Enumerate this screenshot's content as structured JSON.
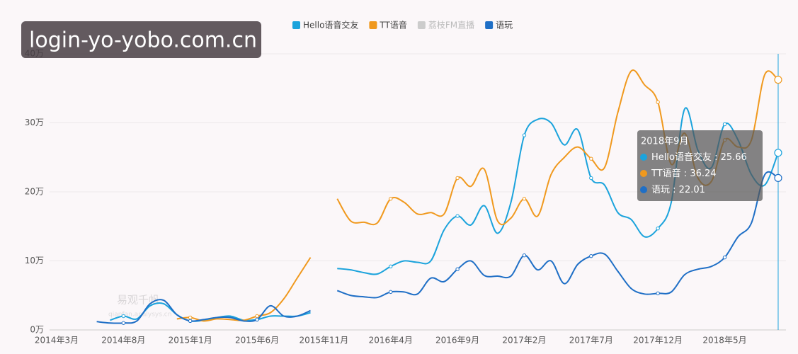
{
  "chart_data": {
    "type": "line",
    "watermark": "login-yo-yobo.com.cn",
    "logo_text": "易观千帆",
    "logo_url": "qianfan.analysys.cn",
    "categories": [
      "2014年3月",
      null,
      null,
      null,
      null,
      "2014年8月",
      null,
      null,
      null,
      null,
      "2015年1月",
      null,
      null,
      null,
      null,
      "2015年6月",
      null,
      null,
      null,
      null,
      "2015年11月",
      null,
      null,
      null,
      null,
      "2016年4月",
      null,
      null,
      null,
      null,
      "2016年9月",
      null,
      null,
      null,
      null,
      "2017年2月",
      null,
      null,
      null,
      null,
      "2017年7月",
      null,
      null,
      null,
      null,
      "2017年12月",
      null,
      null,
      null,
      null,
      "2018年5月",
      null,
      null,
      null,
      null
    ],
    "series": [
      {
        "name": "Hello语音交友",
        "color": "#1ba3dc",
        "values": [
          null,
          null,
          null,
          null,
          1.4,
          2.0,
          1.6,
          3.5,
          3.8,
          2.2,
          1.3,
          1.4,
          1.8,
          2.0,
          1.4,
          1.5,
          2.0,
          2.0,
          2.0,
          2.5,
          null,
          8.9,
          8.7,
          8.3,
          8.1,
          9.2,
          10.0,
          9.8,
          10.0,
          14.5,
          16.5,
          15.2,
          18.0,
          14.0,
          18.5,
          28.2,
          30.5,
          30.0,
          26.8,
          29.0,
          22.0,
          21.0,
          17.0,
          16.0,
          13.5,
          14.7,
          18.5,
          32.0,
          26.0,
          23.5,
          29.8,
          27.5,
          22.5,
          21.0,
          25.66
        ]
      },
      {
        "name": "TT语音",
        "color": "#f0991e",
        "values": [
          null,
          null,
          null,
          null,
          null,
          null,
          null,
          null,
          null,
          1.6,
          1.8,
          1.3,
          1.6,
          1.5,
          1.4,
          2.0,
          2.5,
          4.5,
          7.5,
          10.5,
          null,
          19.0,
          15.8,
          15.6,
          15.5,
          19.0,
          18.5,
          16.8,
          17.0,
          16.8,
          22.0,
          20.8,
          23.3,
          15.8,
          16.2,
          19.0,
          16.5,
          22.5,
          25.0,
          26.5,
          24.8,
          23.5,
          31.5,
          37.5,
          35.5,
          33.0,
          24.0,
          28.5,
          22.0,
          21.5,
          27.5,
          26.5,
          27.5,
          37.0,
          36.24
        ]
      },
      {
        "name": "荔枝FM直播",
        "color": "#cccccc",
        "hidden": true,
        "values": [
          null,
          null,
          null,
          null,
          null,
          null,
          null,
          null,
          null,
          null,
          null,
          null,
          null,
          null,
          null,
          null,
          null,
          null,
          null,
          null,
          null,
          null,
          null,
          null,
          null,
          null,
          null,
          null,
          null,
          null,
          null,
          null,
          null,
          null,
          null,
          null,
          null,
          null,
          null,
          null,
          null,
          null,
          null,
          null,
          null,
          null,
          null,
          null,
          null,
          null,
          null,
          null,
          null,
          null,
          null
        ]
      },
      {
        "name": "语玩",
        "color": "#1f6fc6",
        "values": [
          null,
          null,
          null,
          1.2,
          1.0,
          1.0,
          1.3,
          3.8,
          4.3,
          2.2,
          1.3,
          1.5,
          1.8,
          1.8,
          1.3,
          1.5,
          3.5,
          2.0,
          2.0,
          2.8,
          null,
          5.7,
          5.0,
          4.8,
          4.7,
          5.5,
          5.5,
          5.2,
          7.5,
          7.0,
          8.8,
          10.0,
          7.9,
          7.8,
          7.8,
          10.8,
          8.7,
          10.0,
          6.7,
          9.5,
          10.7,
          11.0,
          8.5,
          6.0,
          5.2,
          5.3,
          5.5,
          8.0,
          8.8,
          9.2,
          10.5,
          13.5,
          15.5,
          22.5,
          22.01
        ]
      }
    ],
    "ylim": [
      0,
      40
    ],
    "yticks": [
      {
        "value": 0,
        "label": "0万"
      },
      {
        "value": 10,
        "label": "10万"
      },
      {
        "value": 20,
        "label": "20万"
      },
      {
        "value": 30,
        "label": "30万"
      },
      {
        "value": 40,
        "label": "40万"
      }
    ],
    "grid": true,
    "tooltip": {
      "title": "2018年9月",
      "separator": " : ",
      "series": [
        0,
        1,
        3
      ],
      "index": 54
    }
  }
}
